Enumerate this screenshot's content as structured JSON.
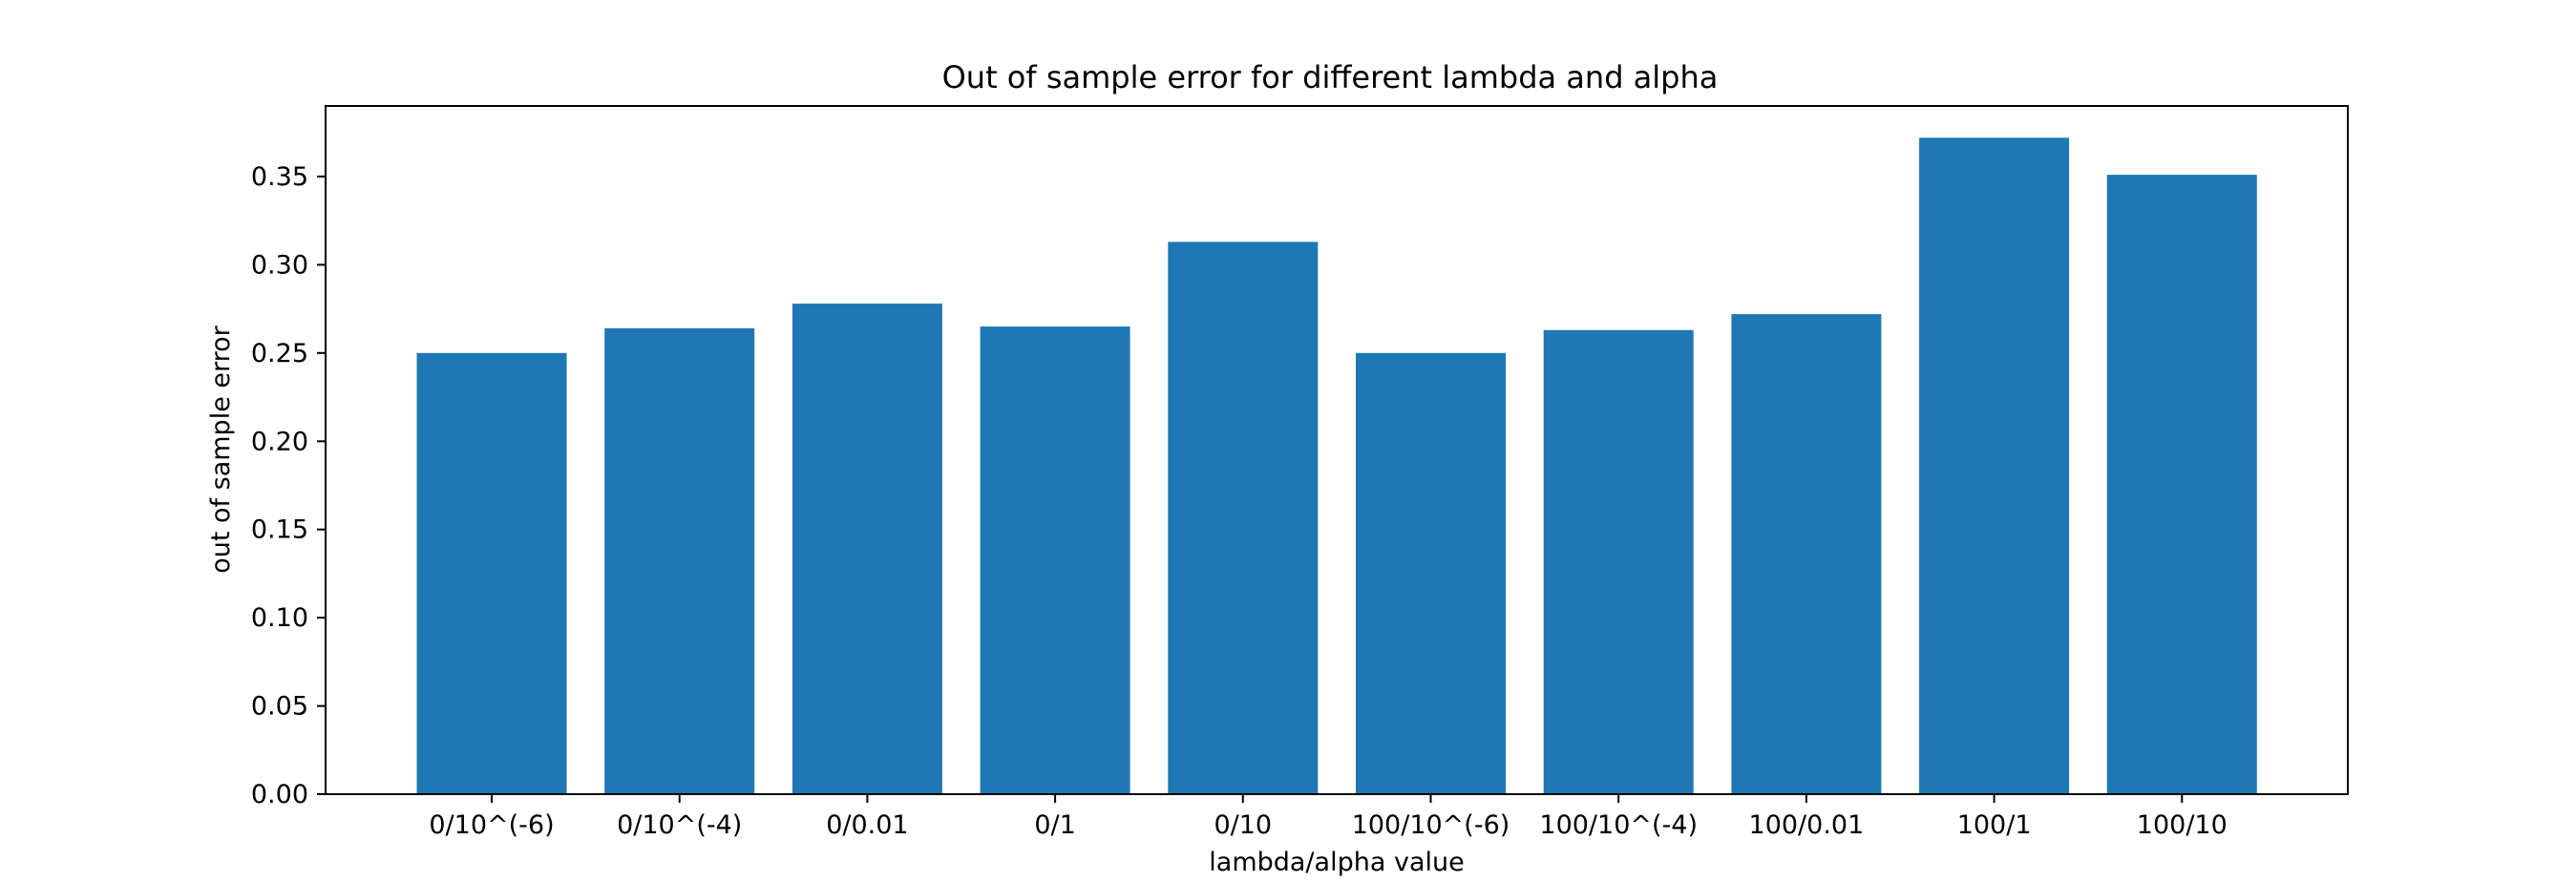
{
  "chart_data": {
    "type": "bar",
    "title": "Out of sample error for different lambda and alpha",
    "xlabel": "lambda/alpha value",
    "ylabel": "out of sample error",
    "categories": [
      "0/10^(-6)",
      "0/10^(-4)",
      "0/0.01",
      "0/1",
      "0/10",
      "100/10^(-6)",
      "100/10^(-4)",
      "100/0.01",
      "100/1",
      "100/10"
    ],
    "values": [
      0.25,
      0.264,
      0.278,
      0.265,
      0.313,
      0.25,
      0.263,
      0.272,
      0.372,
      0.351
    ],
    "ylim": [
      0,
      0.39
    ],
    "yticks": [
      0.0,
      0.05,
      0.1,
      0.15,
      0.2,
      0.25,
      0.3,
      0.35
    ],
    "ytick_labels": [
      "0.00",
      "0.05",
      "0.10",
      "0.15",
      "0.20",
      "0.25",
      "0.30",
      "0.35"
    ],
    "bar_color": "#1f77b4",
    "grid": false,
    "legend": false
  }
}
